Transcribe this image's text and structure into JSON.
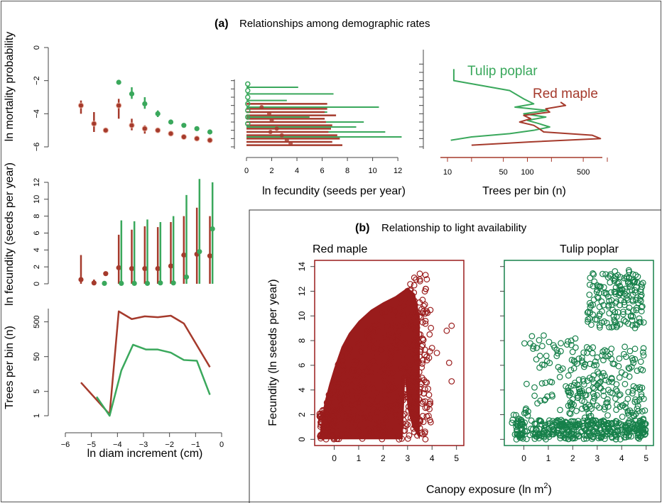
{
  "colors": {
    "red": "#a53a2c",
    "green": "#3aa85c",
    "green_dark": "#16804a",
    "red_dark": "#9a1c1c"
  },
  "panel_a": {
    "letter": "(a)",
    "title": "Relationships among demographic rates"
  },
  "panel_b": {
    "letter": "(b)",
    "title": "Relationship to light availability"
  },
  "chart_data": [
    {
      "id": "mortality",
      "type": "scatter",
      "ylabel": "ln mortality probability",
      "xlim": [
        -6,
        0
      ],
      "ylim": [
        -6,
        0
      ],
      "yticks": [
        0,
        -2,
        -4,
        -6
      ],
      "series": [
        {
          "color": "red",
          "x": [
            -5.4,
            -4.9,
            -4.45,
            -3.95,
            -3.45,
            -2.95,
            -2.45,
            -1.95,
            -1.45,
            -0.95,
            -0.45
          ],
          "y": [
            -3.5,
            -4.6,
            -5.0,
            -3.5,
            -4.7,
            -4.9,
            -5.0,
            -5.2,
            -5.4,
            -5.5,
            -5.6
          ],
          "lo": [
            -4.0,
            -5.1,
            -5.1,
            -4.3,
            -5.0,
            -5.2,
            -5.1,
            -5.3,
            -5.5,
            -5.6,
            -5.7
          ],
          "hi": [
            -3.2,
            -3.9,
            -4.9,
            -3.1,
            -4.3,
            -4.7,
            -4.9,
            -5.1,
            -5.3,
            -5.4,
            -5.5
          ]
        },
        {
          "color": "green",
          "x": [
            -3.95,
            -3.45,
            -2.95,
            -2.45,
            -1.95,
            -1.45,
            -0.95,
            -0.45
          ],
          "y": [
            -2.1,
            -2.8,
            -3.4,
            -4.0,
            -4.5,
            -4.7,
            -4.9,
            -5.1
          ],
          "lo": [
            -2.2,
            -3.1,
            -3.7,
            -4.2,
            -4.6,
            -4.8,
            -5.0,
            -5.2
          ],
          "hi": [
            -2.0,
            -2.4,
            -3.0,
            -3.8,
            -4.4,
            -4.6,
            -4.8,
            -5.0
          ]
        }
      ]
    },
    {
      "id": "fecundity",
      "type": "scatter",
      "ylabel": "ln fecundity (seeds per year)",
      "xlim": [
        -6,
        0
      ],
      "ylim": [
        0,
        12
      ],
      "yticks": [
        0,
        2,
        4,
        6,
        8,
        10,
        12
      ],
      "series": [
        {
          "color": "red",
          "x": [
            -5.4,
            -4.9,
            -4.45,
            -3.95,
            -3.45,
            -2.95,
            -2.45,
            -1.95,
            -1.45,
            -0.95,
            -0.45
          ],
          "y": [
            0.5,
            0.1,
            1.2,
            1.9,
            1.8,
            1.8,
            1.8,
            2.1,
            3.4,
            3.5,
            3.3
          ],
          "lo": [
            0.0,
            0.0,
            1.1,
            0.0,
            0.0,
            0.0,
            0.0,
            0.0,
            0.0,
            0.0,
            0.0
          ],
          "hi": [
            3.4,
            0.5,
            1.4,
            5.8,
            6.4,
            6.8,
            6.7,
            7.3,
            8.0,
            9.0,
            8.0
          ]
        },
        {
          "color": "green",
          "x": [
            -4.5,
            -3.85,
            -3.35,
            -2.85,
            -2.35,
            -1.85,
            -1.35,
            -0.85,
            -0.35
          ],
          "y": [
            0.05,
            0.05,
            0.05,
            0.05,
            0.1,
            0.1,
            0.8,
            3.8,
            6.5
          ],
          "lo": [
            0.0,
            0.0,
            0.0,
            0.0,
            0.0,
            0.0,
            0.0,
            0.0,
            0.0
          ],
          "hi": [
            0.3,
            7.5,
            7.4,
            7.6,
            7.3,
            8.0,
            10.5,
            12.4,
            12.0
          ]
        }
      ]
    },
    {
      "id": "trees_per_bin_diam",
      "type": "line",
      "xlabel": "ln diam increment (cm)",
      "ylabel": "Trees per bin (n)",
      "xlim": [
        -6,
        0
      ],
      "ylim": [
        1,
        1200
      ],
      "log_y": true,
      "xticks": [
        -6,
        -5,
        -4,
        -3,
        -2,
        -1,
        0
      ],
      "yticks": [
        1,
        5,
        50,
        500
      ],
      "series": [
        {
          "color": "red",
          "x": [
            -5.4,
            -4.3,
            -3.95,
            -3.45,
            -2.95,
            -2.45,
            -1.95,
            -1.45,
            -0.45
          ],
          "y": [
            9,
            1.1,
            1000,
            600,
            720,
            680,
            750,
            450,
            25
          ]
        },
        {
          "color": "green",
          "x": [
            -4.8,
            -4.3,
            -3.85,
            -3.4,
            -2.9,
            -2.45,
            -1.95,
            -1.45,
            -0.95,
            -0.45
          ],
          "y": [
            3.5,
            1.0,
            20,
            110,
            80,
            80,
            65,
            40,
            38,
            4
          ]
        }
      ]
    },
    {
      "id": "fecundity_hist",
      "type": "bar",
      "xlabel": "ln fecundity (seeds per year)",
      "xlim": [
        0,
        12.5
      ],
      "ylim": [
        -6,
        0
      ],
      "xticks": [
        0,
        2,
        4,
        6,
        8,
        10,
        12
      ],
      "series": [
        {
          "color": "green",
          "bins_y": [
            -2.4,
            -2.8,
            -3.2,
            -3.6,
            -3.9,
            -4.2,
            -4.5,
            -4.8,
            -5.1,
            -5.4,
            -5.7
          ],
          "values": [
            4.1,
            6.9,
            3.2,
            10.5,
            6.4,
            5.0,
            9.3,
            8.7,
            11.0,
            12.3,
            3.3
          ]
        },
        {
          "color": "red",
          "bins_y": [
            -3.4,
            -3.7,
            -3.9,
            -4.1,
            -4.3,
            -4.5,
            -4.7,
            -4.9,
            -5.1,
            -5.3,
            -5.5,
            -5.7,
            -5.9
          ],
          "values": [
            6.4,
            6.4,
            6.2,
            7.1,
            6.2,
            6.3,
            6.8,
            6.7,
            6.5,
            7.2,
            7.4,
            6.8,
            7.6
          ]
        }
      ]
    },
    {
      "id": "trees_per_bin_mort",
      "type": "line",
      "xlabel": "Trees per bin (n)",
      "log_x": true,
      "xlim": [
        10,
        1000
      ],
      "ylim": [
        -6,
        0
      ],
      "xticks": [
        10,
        50,
        100,
        500
      ],
      "series": [
        {
          "name": "Tulip poplar",
          "color": "green",
          "y": [
            -1.3,
            -2.0,
            -2.6,
            -3.1,
            -3.4,
            -3.6,
            -3.8,
            -4.0,
            -4.2,
            -4.4,
            -4.6,
            -4.8,
            -5.0,
            -5.2,
            -5.4,
            -5.6
          ],
          "x": [
            12,
            12,
            60,
            90,
            120,
            70,
            180,
            90,
            170,
            100,
            140,
            190,
            120,
            60,
            20,
            11
          ]
        },
        {
          "name": "Red maple",
          "color": "red",
          "y": [
            -3.3,
            -3.5,
            -3.7,
            -3.9,
            -4.1,
            -4.3,
            -4.5,
            -4.7,
            -4.9,
            -5.1,
            -5.3,
            -5.5,
            -5.7,
            -5.9
          ],
          "x": [
            260,
            300,
            170,
            190,
            90,
            110,
            80,
            120,
            140,
            160,
            650,
            820,
            110,
            20
          ]
        }
      ]
    },
    {
      "id": "red_maple_scatter",
      "type": "scatter",
      "title": "Red maple",
      "ylabel": "Fecundity (ln seeds per year)",
      "xlim": [
        -0.8,
        5.3
      ],
      "ylim": [
        -0.5,
        14.5
      ],
      "xticks": [
        0,
        1,
        2,
        3,
        4,
        5
      ],
      "yticks": [
        0,
        2,
        4,
        6,
        8,
        10,
        12,
        14
      ],
      "note": "Dense cloud: x 0 to 3.8 (few up to 5), y 0 to 13.7; envelope rises with canopy exposure."
    },
    {
      "id": "tulip_poplar_scatter",
      "type": "scatter",
      "title": "Tulip poplar",
      "xlabel": "Canopy exposure (ln m",
      "xlim": [
        -0.8,
        5.3
      ],
      "ylim": [
        -0.5,
        14.5
      ],
      "xticks": [
        0,
        1,
        2,
        3,
        4,
        5
      ],
      "note": "Points x 0 to 5, y 0 to 13.7; dense band near y=0, clusters at y 9 to 13.5 for x 2.5 to 4.8."
    }
  ],
  "shared_ylabel_right": "Fecundity (ln seeds per year)",
  "shared_xlabel_b": "Canopy exposure (ln m",
  "shared_xlabel_b_sup": "2",
  "shared_xlabel_b_close": ")"
}
